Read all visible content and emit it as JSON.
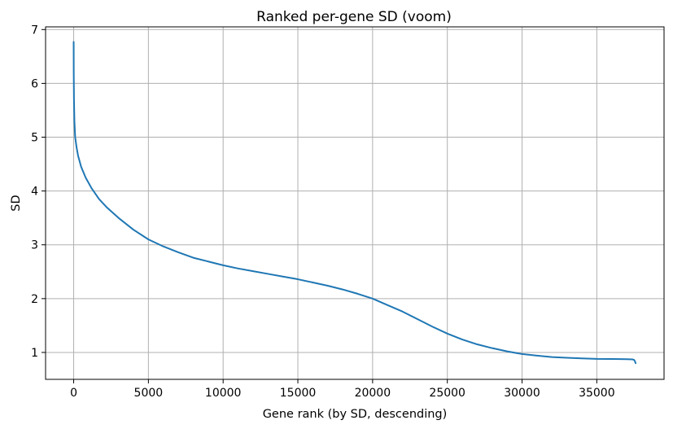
{
  "chart_data": {
    "type": "line",
    "title": "Ranked per-gene SD (voom)",
    "xlabel": "Gene rank (by SD, descending)",
    "ylabel": "SD",
    "xlim": [
      -1880,
      39500
    ],
    "ylim": [
      0.5,
      7.05
    ],
    "xticks": [
      0,
      5000,
      10000,
      15000,
      20000,
      25000,
      30000,
      35000
    ],
    "xtick_labels": [
      "0",
      "5000",
      "10000",
      "15000",
      "20000",
      "25000",
      "30000",
      "35000"
    ],
    "yticks": [
      1,
      2,
      3,
      4,
      5,
      6,
      7
    ],
    "ytick_labels": [
      "1",
      "2",
      "3",
      "4",
      "5",
      "6",
      "7"
    ],
    "grid": true,
    "series": [
      {
        "color": "#1f77b4",
        "x": [
          0,
          5,
          20,
          50,
          100,
          200,
          300,
          500,
          800,
          1200,
          1700,
          2200,
          3000,
          4000,
          5000,
          6000,
          7000,
          8000,
          9000,
          10000,
          11000,
          12000,
          13000,
          14000,
          15000,
          16000,
          17000,
          18000,
          19000,
          20000,
          21000,
          22000,
          23000,
          24000,
          25000,
          26000,
          27000,
          28000,
          29000,
          30000,
          31000,
          32000,
          33000,
          34000,
          35000,
          36000,
          37000,
          37400,
          37500,
          37560,
          37600
        ],
        "y": [
          6.77,
          6.2,
          5.7,
          5.3,
          5.0,
          4.8,
          4.65,
          4.45,
          4.25,
          4.05,
          3.85,
          3.7,
          3.5,
          3.28,
          3.1,
          2.97,
          2.86,
          2.76,
          2.69,
          2.62,
          2.56,
          2.51,
          2.46,
          2.41,
          2.36,
          2.3,
          2.24,
          2.17,
          2.09,
          2.0,
          1.88,
          1.76,
          1.62,
          1.48,
          1.35,
          1.24,
          1.15,
          1.08,
          1.02,
          0.97,
          0.94,
          0.915,
          0.9,
          0.89,
          0.88,
          0.878,
          0.875,
          0.87,
          0.86,
          0.83,
          0.8
        ]
      }
    ]
  }
}
